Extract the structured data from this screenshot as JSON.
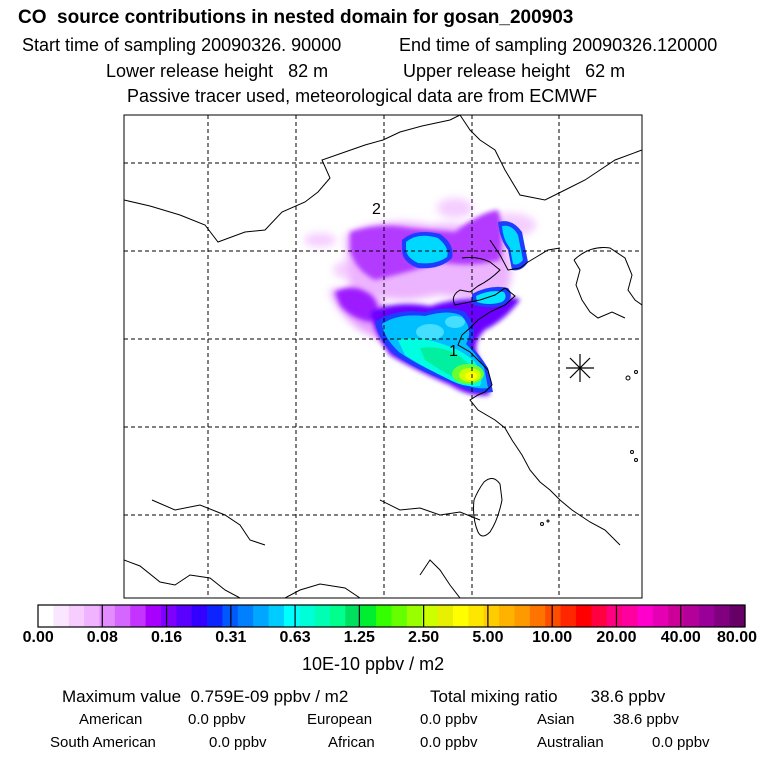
{
  "title": "CO  source contributions in nested domain for gosan_200903",
  "start_label": "Start time of sampling 20090326. 90000",
  "end_label": "End time of sampling 20090326.120000",
  "lower_label": "Lower release height   82 m",
  "upper_label": "Upper release height   62 m",
  "note": "Passive tracer used, meteorological data are from ECMWF",
  "markers": {
    "m1": "1",
    "m2": "2"
  },
  "colorbar": {
    "ticks": [
      "0.00",
      "0.08",
      "0.16",
      "0.31",
      "0.63",
      "1.25",
      "2.50",
      "5.00",
      "10.00",
      "20.00",
      "40.00",
      "80.00"
    ],
    "unit": "10E-10 ppbv / m2",
    "colors": [
      "#ffffff",
      "#fbe6ff",
      "#f7ccff",
      "#f0b3ff",
      "#e38cff",
      "#d566ff",
      "#c433ff",
      "#a800ff",
      "#8000ff",
      "#5a00ff",
      "#3300ff",
      "#0d24ff",
      "#0059ff",
      "#0080ff",
      "#00a6ff",
      "#00ccff",
      "#00ffff",
      "#00ffd9",
      "#00ffb3",
      "#00ff8c",
      "#00e060",
      "#00ee30",
      "#33ff00",
      "#66ff00",
      "#99ff00",
      "#ccff00",
      "#e6f000",
      "#ffff00",
      "#ffe600",
      "#ffcc00",
      "#ffb300",
      "#ff9900",
      "#ff7300",
      "#ff4d00",
      "#ff2600",
      "#ff0000",
      "#ff0040",
      "#ff0080",
      "#ff00a0",
      "#ff00cc",
      "#e600b3",
      "#cc0099",
      "#b30099",
      "#990099",
      "#800080",
      "#660066"
    ]
  },
  "stats": {
    "max_label": "Maximum value  0.759E-09 ppbv / m2",
    "total_label": "Total mixing ratio       38.6 ppbv"
  },
  "regions": {
    "american_label": "American",
    "american_value": "0.0 ppbv",
    "european_label": "European",
    "european_value": "0.0 ppbv",
    "asian_label": "Asian",
    "asian_value": "38.6 ppbv",
    "south_american_label": "South American",
    "south_american_value": "0.0 ppbv",
    "african_label": "African",
    "african_value": "0.0 ppbv",
    "australian_label": "Australian",
    "australian_value": "0.0 ppbv"
  }
}
